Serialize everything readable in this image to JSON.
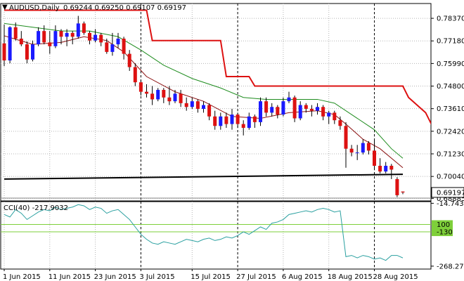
{
  "header": {
    "symbol_info": "AUDUSD,Daily",
    "ohlc": "0.69244 0.69250 0.69107 0.69197",
    "menu_glyph": "▼"
  },
  "colors": {
    "bull_candle": "#1a1aff",
    "bear_candle": "#dd1111",
    "wick": "#000000",
    "ma_short": "#8b1010",
    "ma_medium": "#1e8c1e",
    "ma_long": "#000000",
    "trail_stop": "#dd1111",
    "cci": "#2aa0a0",
    "cci_levels": "#7ecf3a",
    "grid": "#b4b4b4",
    "current_price_box": "#ffffff"
  },
  "chart_data": [
    {
      "type": "candlestick",
      "symbol": "AUDUSD",
      "timeframe": "Daily",
      "ylim": [
        0.6875,
        0.7915
      ],
      "y_ticks": [
        "0.78370",
        "0.77180",
        "0.75990",
        "0.74800",
        "0.73610",
        "0.72420",
        "0.71230",
        "0.70040",
        "0.68885"
      ],
      "current_price": "0.69197",
      "x_ticks": [
        "1 Jun 2015",
        "11 Jun 2015",
        "23 Jun 2015",
        "3 Jul 2015",
        "15 Jul 2015",
        "27 Jul 2015",
        "6 Aug 2015",
        "18 Aug 2015",
        "28 Aug 2015"
      ],
      "x_tick_bars": [
        0,
        8,
        16,
        24,
        33,
        41,
        49,
        57,
        65
      ],
      "candles": [
        [
          0.7705,
          0.7805,
          0.7585,
          0.7615
        ],
        [
          0.7615,
          0.7795,
          0.76,
          0.779
        ],
        [
          0.779,
          0.7815,
          0.772,
          0.773
        ],
        [
          0.773,
          0.777,
          0.769,
          0.77
        ],
        [
          0.77,
          0.7715,
          0.76,
          0.762
        ],
        [
          0.762,
          0.772,
          0.761,
          0.77
        ],
        [
          0.77,
          0.779,
          0.769,
          0.777
        ],
        [
          0.777,
          0.78,
          0.77,
          0.771
        ],
        [
          0.771,
          0.777,
          0.765,
          0.769
        ],
        [
          0.769,
          0.78,
          0.768,
          0.777
        ],
        [
          0.777,
          0.778,
          0.77,
          0.774
        ],
        [
          0.774,
          0.778,
          0.769,
          0.776
        ],
        [
          0.776,
          0.777,
          0.77,
          0.774
        ],
        [
          0.774,
          0.785,
          0.773,
          0.781
        ],
        [
          0.781,
          0.782,
          0.775,
          0.776
        ],
        [
          0.776,
          0.777,
          0.77,
          0.772
        ],
        [
          0.772,
          0.778,
          0.771,
          0.775
        ],
        [
          0.775,
          0.776,
          0.769,
          0.771
        ],
        [
          0.771,
          0.773,
          0.765,
          0.766
        ],
        [
          0.766,
          0.776,
          0.764,
          0.77
        ],
        [
          0.77,
          0.776,
          0.768,
          0.773
        ],
        [
          0.773,
          0.774,
          0.762,
          0.765
        ],
        [
          0.765,
          0.767,
          0.756,
          0.758
        ],
        [
          0.758,
          0.76,
          0.748,
          0.75
        ],
        [
          0.75,
          0.751,
          0.743,
          0.745
        ],
        [
          0.745,
          0.749,
          0.742,
          0.744
        ],
        [
          0.744,
          0.748,
          0.738,
          0.741
        ],
        [
          0.741,
          0.747,
          0.74,
          0.746
        ],
        [
          0.746,
          0.747,
          0.739,
          0.742
        ],
        [
          0.742,
          0.748,
          0.738,
          0.74
        ],
        [
          0.74,
          0.746,
          0.739,
          0.744
        ],
        [
          0.744,
          0.746,
          0.737,
          0.739
        ],
        [
          0.739,
          0.742,
          0.735,
          0.737
        ],
        [
          0.737,
          0.742,
          0.736,
          0.74
        ],
        [
          0.74,
          0.741,
          0.734,
          0.736
        ],
        [
          0.736,
          0.74,
          0.734,
          0.738
        ],
        [
          0.738,
          0.739,
          0.73,
          0.732
        ],
        [
          0.732,
          0.735,
          0.725,
          0.727
        ],
        [
          0.727,
          0.734,
          0.725,
          0.732
        ],
        [
          0.732,
          0.734,
          0.726,
          0.728
        ],
        [
          0.728,
          0.736,
          0.725,
          0.733
        ],
        [
          0.733,
          0.734,
          0.726,
          0.728
        ],
        [
          0.728,
          0.73,
          0.722,
          0.726
        ],
        [
          0.726,
          0.734,
          0.725,
          0.732
        ],
        [
          0.732,
          0.733,
          0.726,
          0.729
        ],
        [
          0.729,
          0.742,
          0.727,
          0.74
        ],
        [
          0.74,
          0.742,
          0.732,
          0.734
        ],
        [
          0.734,
          0.739,
          0.732,
          0.737
        ],
        [
          0.737,
          0.738,
          0.731,
          0.733
        ],
        [
          0.733,
          0.742,
          0.732,
          0.74
        ],
        [
          0.74,
          0.745,
          0.739,
          0.742
        ],
        [
          0.742,
          0.743,
          0.729,
          0.731
        ],
        [
          0.731,
          0.74,
          0.73,
          0.738
        ],
        [
          0.738,
          0.739,
          0.734,
          0.736
        ],
        [
          0.736,
          0.738,
          0.732,
          0.735
        ],
        [
          0.735,
          0.739,
          0.733,
          0.737
        ],
        [
          0.737,
          0.738,
          0.73,
          0.732
        ],
        [
          0.732,
          0.735,
          0.728,
          0.734
        ],
        [
          0.734,
          0.735,
          0.728,
          0.73
        ],
        [
          0.73,
          0.732,
          0.725,
          0.727
        ],
        [
          0.727,
          0.729,
          0.705,
          0.715
        ],
        [
          0.715,
          0.717,
          0.711,
          0.713
        ],
        [
          0.713,
          0.717,
          0.709,
          0.713
        ],
        [
          0.713,
          0.72,
          0.712,
          0.718
        ],
        [
          0.718,
          0.719,
          0.712,
          0.714
        ],
        [
          0.714,
          0.72,
          0.704,
          0.706
        ],
        [
          0.706,
          0.71,
          0.702,
          0.703
        ],
        [
          0.703,
          0.708,
          0.702,
          0.706
        ],
        [
          0.706,
          0.707,
          0.699,
          0.704
        ],
        [
          0.699,
          0.7,
          0.6895,
          0.6905
        ],
        [
          0.69244,
          0.6925,
          0.69107,
          0.69197
        ]
      ],
      "ma_short": [
        [
          0,
          0.7745
        ],
        [
          5,
          0.77
        ],
        [
          10,
          0.771
        ],
        [
          14,
          0.774
        ],
        [
          18,
          0.772
        ],
        [
          21,
          0.766
        ],
        [
          25,
          0.753
        ],
        [
          30,
          0.745
        ],
        [
          35,
          0.74
        ],
        [
          40,
          0.732
        ],
        [
          45,
          0.731
        ],
        [
          50,
          0.734
        ],
        [
          55,
          0.735
        ],
        [
          58,
          0.733
        ],
        [
          60,
          0.728
        ],
        [
          63,
          0.72
        ],
        [
          66,
          0.715
        ],
        [
          70,
          0.705
        ]
      ],
      "ma_medium": [
        [
          0,
          0.781
        ],
        [
          5,
          0.779
        ],
        [
          10,
          0.777
        ],
        [
          15,
          0.777
        ],
        [
          20,
          0.774
        ],
        [
          24,
          0.767
        ],
        [
          28,
          0.759
        ],
        [
          33,
          0.752
        ],
        [
          38,
          0.747
        ],
        [
          42,
          0.742
        ],
        [
          46,
          0.741
        ],
        [
          50,
          0.741
        ],
        [
          55,
          0.741
        ],
        [
          58,
          0.739
        ],
        [
          61,
          0.733
        ],
        [
          65,
          0.725
        ],
        [
          68,
          0.715
        ],
        [
          70,
          0.71
        ]
      ],
      "ma_long": [
        [
          0,
          0.699
        ],
        [
          70,
          0.7015
        ]
      ],
      "trailing_stop": [
        [
          0,
          0.788
        ],
        [
          25,
          0.788
        ],
        [
          26,
          0.772
        ],
        [
          38,
          0.772
        ],
        [
          39,
          0.753
        ],
        [
          43,
          0.753
        ],
        [
          44,
          0.748
        ],
        [
          70,
          0.748
        ],
        [
          71,
          0.742
        ],
        [
          74,
          0.734
        ],
        [
          76,
          0.722
        ],
        [
          78,
          0.713
        ]
      ],
      "price_line": 0.689
    },
    {
      "type": "line",
      "indicator": "CCI",
      "label": "CCI(40) -217.9032",
      "ylim": [
        -280,
        -8
      ],
      "y_ticks": [
        "-14.7434",
        "-268.2727"
      ],
      "levels": [
        {
          "value": -100,
          "label": "100"
        },
        {
          "value": -130,
          "label": "-130"
        }
      ],
      "values": [
        -60,
        -70,
        -40,
        -55,
        -80,
        -65,
        -50,
        -40,
        -45,
        -30,
        -40,
        -35,
        -30,
        -20,
        -25,
        -40,
        -30,
        -35,
        -55,
        -45,
        -40,
        -60,
        -80,
        -110,
        -140,
        -160,
        -175,
        -180,
        -170,
        -175,
        -180,
        -170,
        -160,
        -165,
        -170,
        -160,
        -155,
        -165,
        -160,
        -150,
        -155,
        -145,
        -130,
        -140,
        -125,
        -110,
        -120,
        -95,
        -90,
        -80,
        -60,
        -55,
        -50,
        -45,
        -50,
        -40,
        -35,
        -40,
        -50,
        -45,
        -230,
        -225,
        -235,
        -225,
        -230,
        -240,
        -235,
        -245,
        -225,
        -225,
        -235
      ]
    }
  ]
}
